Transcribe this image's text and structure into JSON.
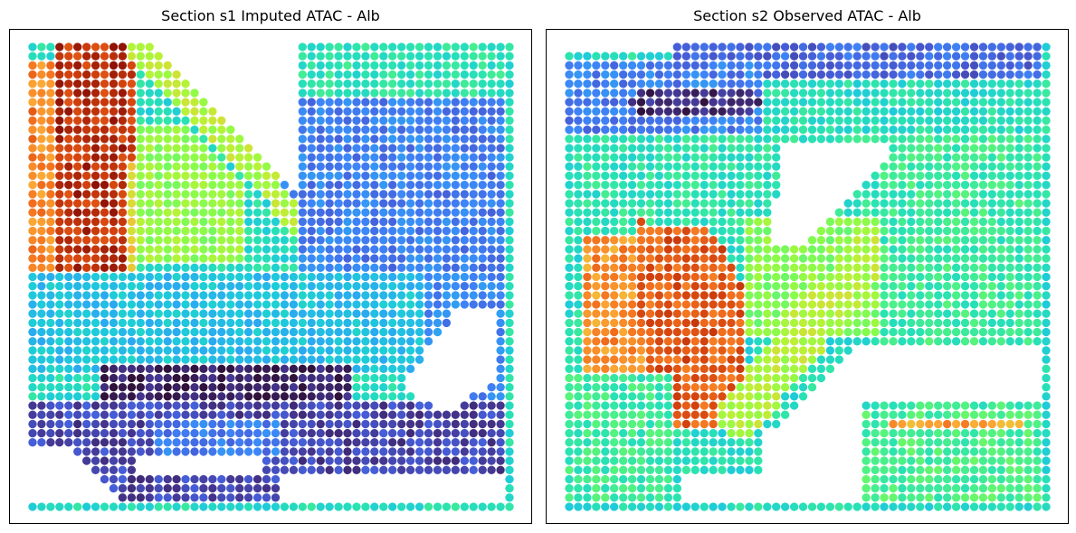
{
  "figure": {
    "width": 1189,
    "height": 590
  },
  "chart_data": [
    {
      "type": "scatter",
      "title": "Section s1 Imputed ATAC - Alb",
      "xlabel": "",
      "ylabel": "",
      "colormap": "turbo",
      "grid": false,
      "axes_ticks": false,
      "spot_grid": {
        "cols": 54,
        "rows": 51,
        "x_range": [
          0,
          53
        ],
        "y_range": [
          0,
          50
        ]
      },
      "regions": [
        {
          "name": "bright-band",
          "shape": "poly",
          "pts": [
            [
              3,
              0
            ],
            [
              12,
              0
            ],
            [
              12,
              25
            ],
            [
              3,
              25
            ]
          ],
          "v": 0.93
        },
        {
          "name": "left-edge-hot",
          "shape": "poly",
          "pts": [
            [
              0,
              2
            ],
            [
              3,
              2
            ],
            [
              3,
              25
            ],
            [
              0,
              25
            ]
          ],
          "v": 0.82
        },
        {
          "name": "warm-rim",
          "shape": "poly",
          "pts": [
            [
              11,
              13
            ],
            [
              12,
              13
            ],
            [
              12,
              25
            ],
            [
              11,
              25
            ]
          ],
          "v": 0.72
        },
        {
          "name": "green-wedge",
          "shape": "poly",
          "pts": [
            [
              12,
              9
            ],
            [
              18,
              9
            ],
            [
              24,
              15
            ],
            [
              24,
              24
            ],
            [
              12,
              24
            ]
          ],
          "v": 0.58
        },
        {
          "name": "diagonal-arm",
          "shape": "line",
          "pts": [
            [
              12,
              0
            ],
            [
              30,
              19
            ]
          ],
          "w": 1.5,
          "v": 0.62
        },
        {
          "name": "upper-right-teal",
          "shape": "poly",
          "pts": [
            [
              27,
              0
            ],
            [
              53,
              0
            ],
            [
              53,
              7
            ],
            [
              27,
              7
            ]
          ],
          "v": 0.42
        },
        {
          "name": "upper-right-blue",
          "shape": "poly",
          "pts": [
            [
              26,
              6
            ],
            [
              53,
              6
            ],
            [
              53,
              28
            ],
            [
              30,
              28
            ],
            [
              30,
              18
            ],
            [
              26,
              12
            ]
          ],
          "v": 0.2
        },
        {
          "name": "middle-cyan",
          "shape": "poly",
          "pts": [
            [
              0,
              25
            ],
            [
              44,
              25
            ],
            [
              44,
              36
            ],
            [
              0,
              36
            ]
          ],
          "v": 0.33
        },
        {
          "name": "right-blue-mid",
          "shape": "poly",
          "pts": [
            [
              44,
              25
            ],
            [
              53,
              25
            ],
            [
              53,
              45
            ],
            [
              44,
              45
            ]
          ],
          "v": 0.22
        },
        {
          "name": "dark-band",
          "shape": "poly",
          "pts": [
            [
              8,
              35
            ],
            [
              36,
              35
            ],
            [
              36,
              39
            ],
            [
              8,
              39
            ]
          ],
          "v": 0.03
        },
        {
          "name": "lower-indigo",
          "shape": "poly",
          "pts": [
            [
              0,
              39
            ],
            [
              53,
              39
            ],
            [
              53,
              50
            ],
            [
              0,
              50
            ]
          ],
          "v": 0.1
        },
        {
          "name": "lower-blue-patch",
          "shape": "poly",
          "pts": [
            [
              14,
              41
            ],
            [
              28,
              41
            ],
            [
              28,
              45
            ],
            [
              14,
              45
            ]
          ],
          "v": 0.2
        }
      ],
      "missing_spots": [
        {
          "shape": "poly",
          "pts": [
            [
              14,
              0
            ],
            [
              30,
              17
            ],
            [
              30,
              0
            ]
          ]
        },
        {
          "shape": "poly",
          "pts": [
            [
              23,
              0
            ],
            [
              27,
              0
            ],
            [
              27,
              6
            ],
            [
              23,
              6
            ]
          ]
        },
        {
          "shape": "poly",
          "pts": [
            [
              0,
              44
            ],
            [
              5,
              44
            ],
            [
              10,
              50
            ],
            [
              0,
              50
            ]
          ]
        },
        {
          "shape": "poly",
          "pts": [
            [
              28,
              47
            ],
            [
              53,
              47
            ],
            [
              53,
              50
            ],
            [
              28,
              50
            ]
          ]
        },
        {
          "shape": "poly",
          "pts": [
            [
              41,
              37
            ],
            [
              47,
              29
            ],
            [
              52,
              29
            ],
            [
              52,
              36
            ],
            [
              46,
              40
            ]
          ]
        },
        {
          "shape": "poly",
          "pts": [
            [
              12,
              45
            ],
            [
              26,
              45
            ],
            [
              26,
              47
            ],
            [
              12,
              47
            ]
          ]
        }
      ],
      "seed": 7
    },
    {
      "type": "scatter",
      "title": "Section s2 Observed ATAC - Alb",
      "xlabel": "",
      "ylabel": "",
      "colormap": "turbo",
      "grid": false,
      "axes_ticks": false,
      "spot_grid": {
        "cols": 54,
        "rows": 51,
        "x_range": [
          0,
          53
        ],
        "y_range": [
          0,
          50
        ]
      },
      "regions": [
        {
          "name": "top-blue-band",
          "shape": "poly",
          "pts": [
            [
              12,
              0
            ],
            [
              53,
              0
            ],
            [
              53,
              4
            ],
            [
              12,
              4
            ]
          ],
          "v": 0.16
        },
        {
          "name": "left-blue-arc",
          "shape": "poly",
          "pts": [
            [
              0,
              2
            ],
            [
              22,
              2
            ],
            [
              22,
              10
            ],
            [
              0,
              10
            ]
          ],
          "v": 0.2
        },
        {
          "name": "upper-teal-field",
          "shape": "poly",
          "pts": [
            [
              0,
              10
            ],
            [
              53,
              10
            ],
            [
              53,
              21
            ],
            [
              0,
              21
            ]
          ],
          "v": 0.42
        },
        {
          "name": "dark-streak",
          "shape": "line",
          "pts": [
            [
              8,
              6
            ],
            [
              20,
              6
            ]
          ],
          "w": 1,
          "v": 0.05
        },
        {
          "name": "orange-left",
          "shape": "poly",
          "pts": [
            [
              2,
              21
            ],
            [
              12,
              21
            ],
            [
              12,
              36
            ],
            [
              2,
              36
            ]
          ],
          "v": 0.8
        },
        {
          "name": "red-core",
          "shape": "poly",
          "pts": [
            [
              8,
              19
            ],
            [
              16,
              20
            ],
            [
              20,
              27
            ],
            [
              20,
              42
            ],
            [
              10,
              42
            ],
            [
              8,
              30
            ]
          ],
          "v": 0.87
        },
        {
          "name": "green-mid",
          "shape": "poly",
          "pts": [
            [
              20,
              19
            ],
            [
              35,
              19
            ],
            [
              35,
              32
            ],
            [
              20,
              32
            ]
          ],
          "v": 0.56
        },
        {
          "name": "yellow-arm",
          "shape": "line",
          "pts": [
            [
              19,
              40
            ],
            [
              34,
              22
            ]
          ],
          "w": 2.5,
          "v": 0.62
        },
        {
          "name": "right-teal",
          "shape": "poly",
          "pts": [
            [
              35,
              10
            ],
            [
              53,
              10
            ],
            [
              53,
              50
            ],
            [
              35,
              50
            ]
          ],
          "v": 0.45
        },
        {
          "name": "bottom-right-strip",
          "shape": "poly",
          "pts": [
            [
              33,
              40
            ],
            [
              53,
              40
            ],
            [
              53,
              50
            ],
            [
              33,
              50
            ]
          ],
          "v": 0.47
        },
        {
          "name": "orange-band",
          "shape": "line",
          "pts": [
            [
              36,
              41
            ],
            [
              50,
              41
            ]
          ],
          "w": 0.8,
          "v": 0.78
        },
        {
          "name": "lower-left-mix",
          "shape": "poly",
          "pts": [
            [
              0,
              36
            ],
            [
              12,
              36
            ],
            [
              12,
              50
            ],
            [
              0,
              50
            ]
          ],
          "v": 0.45
        }
      ],
      "missing_spots": [
        {
          "shape": "poly",
          "pts": [
            [
              0,
              0
            ],
            [
              12,
              0
            ],
            [
              12,
              1
            ],
            [
              0,
              1
            ]
          ]
        },
        {
          "shape": "poly",
          "pts": [
            [
              24,
              11
            ],
            [
              36,
              11
            ],
            [
              26,
              22
            ],
            [
              22,
              22
            ]
          ]
        },
        {
          "shape": "poly",
          "pts": [
            [
              22,
              42
            ],
            [
              33,
              32
            ],
            [
              33,
              50
            ],
            [
              22,
              50
            ]
          ]
        },
        {
          "shape": "poly",
          "pts": [
            [
              13,
              47
            ],
            [
              22,
              47
            ],
            [
              22,
              50
            ],
            [
              13,
              50
            ]
          ]
        },
        {
          "shape": "poly",
          "pts": [
            [
              33,
              33
            ],
            [
              53,
              33
            ],
            [
              53,
              39
            ],
            [
              33,
              39
            ]
          ]
        }
      ],
      "seed": 11
    }
  ]
}
